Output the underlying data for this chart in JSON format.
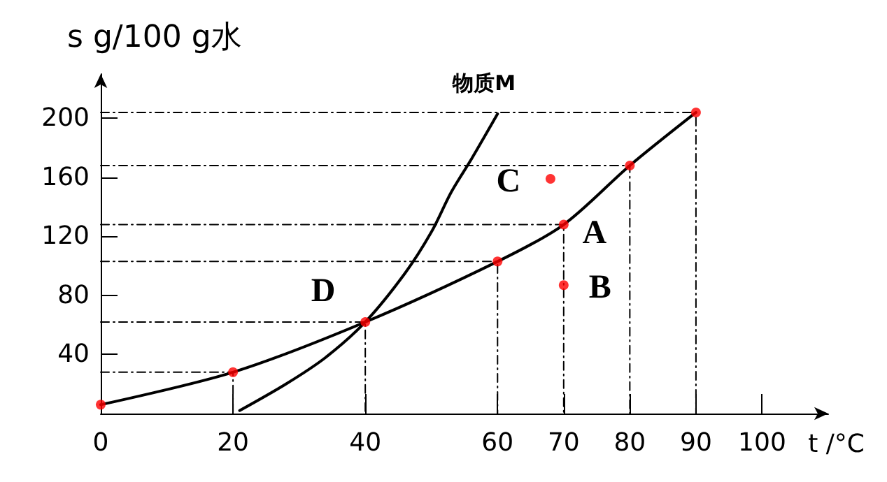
{
  "chart_data": {
    "type": "line",
    "ylabel": "s g/100 g水",
    "xlabel": "t /°C",
    "xlim": [
      0,
      110
    ],
    "ylim": [
      0,
      230
    ],
    "xticks": [
      0,
      20,
      40,
      60,
      70,
      80,
      90,
      100
    ],
    "yticks": [
      40,
      80,
      120,
      160,
      200
    ],
    "grid": false,
    "legend": false,
    "marker": "none",
    "series": [
      {
        "color": "#000000",
        "x": [
          0,
          20,
          40,
          60,
          70,
          80,
          90
        ],
        "values": [
          6,
          28,
          62,
          103,
          128,
          168,
          204
        ]
      },
      {
        "name": "物质M",
        "color": "#000000",
        "x": [
          21,
          28,
          34,
          40,
          46,
          50,
          53,
          56,
          60
        ],
        "values": [
          2,
          20,
          38,
          62,
          95,
          123,
          150,
          172,
          203
        ]
      },
      {
        "type": "scatter",
        "marker": "circle",
        "color": "#ff0000",
        "x": [
          0,
          20,
          40,
          60,
          70,
          80,
          90,
          70,
          68
        ],
        "values": [
          6,
          28,
          62,
          103,
          128,
          168,
          204,
          87,
          159
        ]
      },
      {
        "line_style": "dashed",
        "color": "#000000",
        "x": [
          0,
          20,
          20
        ],
        "values": [
          28,
          28,
          0
        ]
      },
      {
        "line_style": "dashed",
        "color": "#000000",
        "x": [
          0,
          40,
          40
        ],
        "values": [
          62,
          62,
          0
        ]
      },
      {
        "line_style": "dashed",
        "color": "#000000",
        "x": [
          0,
          60,
          60
        ],
        "values": [
          103,
          103,
          0
        ]
      },
      {
        "line_style": "dashed",
        "color": "#000000",
        "x": [
          0,
          70,
          70
        ],
        "values": [
          128,
          128,
          0
        ]
      },
      {
        "line_style": "dashed",
        "color": "#000000",
        "x": [
          0,
          80,
          80
        ],
        "values": [
          168,
          168,
          0
        ]
      },
      {
        "line_style": "dashed",
        "color": "#000000",
        "x": [
          0,
          90,
          90
        ],
        "values": [
          204,
          204,
          0
        ]
      }
    ],
    "annotations": [
      {
        "text": "D",
        "x": 40,
        "y": 62
      },
      {
        "text": "A",
        "x": 70,
        "y": 128
      },
      {
        "text": "B",
        "x": 70,
        "y": 87
      },
      {
        "text": "C",
        "x": 68,
        "y": 159
      }
    ]
  }
}
